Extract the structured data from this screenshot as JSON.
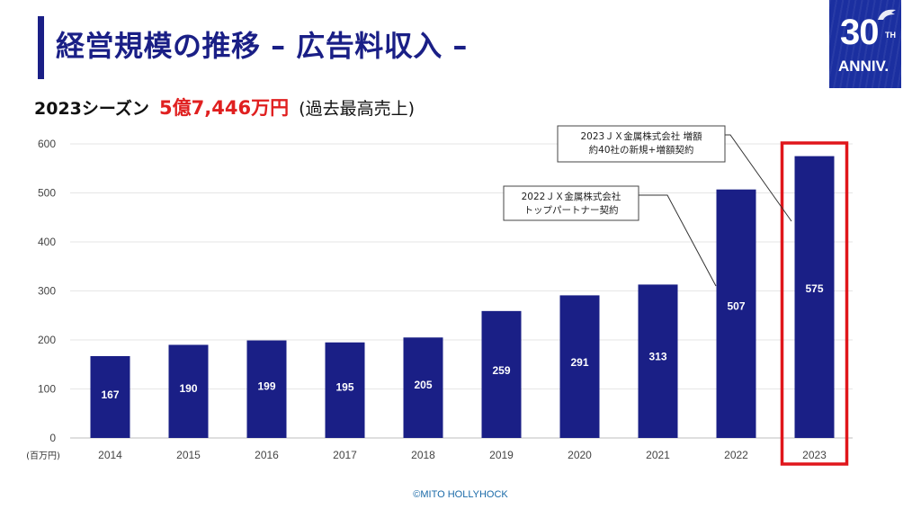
{
  "title": "経営規模の推移 – 広告料収入 –",
  "logo": {
    "number": "30",
    "suffix": "TH",
    "label": "ANNIV."
  },
  "subtitle": {
    "season": "2023シーズン",
    "amount": "5億7,446万円",
    "note": "(過去最高売上)"
  },
  "chart_data": {
    "type": "bar",
    "categories": [
      "2014",
      "2015",
      "2016",
      "2017",
      "2018",
      "2019",
      "2020",
      "2021",
      "2022",
      "2023"
    ],
    "values": [
      167,
      190,
      199,
      195,
      205,
      259,
      291,
      313,
      507,
      575
    ],
    "ylim": [
      0,
      600
    ],
    "yticks": [
      0,
      100,
      200,
      300,
      400,
      500,
      600
    ],
    "ylabel": "(百万円)",
    "grid": true,
    "highlight_category": "2023",
    "colors": {
      "bar": "#1a1f86",
      "highlight": "#e0161b",
      "grid": "#e6e6e6"
    },
    "annotations": [
      {
        "category": "2022",
        "lines": [
          "2022ＪＸ金属株式会社",
          "トップパートナー契約"
        ]
      },
      {
        "category": "2023",
        "lines": [
          "2023ＪＸ金属株式会社 増額",
          "約40社の新規+増額契約"
        ]
      }
    ]
  },
  "footer": "©MITO HOLLYHOCK"
}
